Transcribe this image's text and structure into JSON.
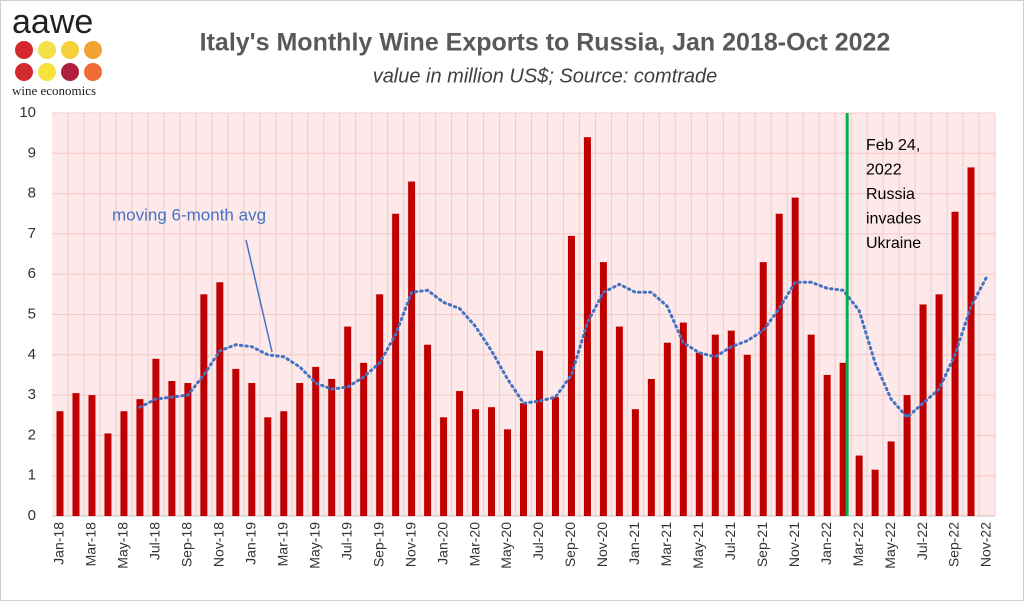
{
  "chart_data": {
    "type": "bar",
    "logo": {
      "name": "aawe",
      "tagline": "wine economics"
    },
    "title": "Italy's Monthly Wine Exports to Russia, Jan 2018-Oct 2022",
    "subtitle": "value in million US$; Source: comtrade",
    "categories": [
      "Jan-18",
      null,
      "Mar-18",
      null,
      "May-18",
      null,
      "Jul-18",
      null,
      "Sep-18",
      null,
      "Nov-18",
      null,
      "Jan-19",
      null,
      "Mar-19",
      null,
      "May-19",
      null,
      "Jul-19",
      null,
      "Sep-19",
      null,
      "Nov-19",
      null,
      "Jan-20",
      null,
      "Mar-20",
      null,
      "May-20",
      null,
      "Jul-20",
      null,
      "Sep-20",
      null,
      "Nov-20",
      null,
      "Jan-21",
      null,
      "Mar-21",
      null,
      "May-21",
      null,
      "Jul-21",
      null,
      "Sep-21",
      null,
      "Nov-21",
      null,
      "Jan-22",
      null,
      "Mar-22",
      null,
      "May-22",
      null,
      "Jul-22",
      null,
      "Sep-22",
      null,
      "Nov-22"
    ],
    "series": [
      {
        "type": "bar",
        "color": "#c00000",
        "values": [
          2.6,
          3.05,
          3.0,
          2.05,
          2.6,
          2.9,
          3.9,
          3.35,
          3.3,
          5.5,
          5.8,
          3.65,
          3.3,
          2.45,
          2.6,
          3.3,
          3.7,
          3.4,
          4.7,
          3.8,
          5.5,
          7.5,
          8.3,
          4.25,
          2.45,
          3.1,
          2.65,
          2.7,
          2.15,
          2.8,
          4.1,
          2.95,
          6.95,
          9.4,
          6.3,
          4.7,
          2.65,
          3.4,
          4.3,
          4.8,
          4.05,
          4.5,
          4.6,
          4.0,
          6.3,
          7.5,
          7.9,
          4.5,
          3.5,
          3.8,
          1.5,
          1.15,
          1.85,
          3.0,
          5.25,
          5.5,
          7.55,
          8.65,
          null
        ]
      },
      {
        "type": "line",
        "name": "moving 6-month avg",
        "color": "#4472c4",
        "values": [
          null,
          null,
          null,
          null,
          null,
          2.7,
          2.9,
          2.95,
          3.0,
          3.5,
          4.1,
          4.25,
          4.2,
          4.0,
          3.95,
          3.7,
          3.3,
          3.15,
          3.2,
          3.45,
          3.8,
          4.5,
          5.55,
          5.6,
          5.3,
          5.15,
          4.7,
          4.1,
          3.4,
          2.8,
          2.85,
          2.95,
          3.5,
          4.8,
          5.55,
          5.75,
          5.55,
          5.55,
          5.2,
          4.3,
          4.05,
          3.95,
          4.2,
          4.35,
          4.6,
          5.15,
          5.8,
          5.8,
          5.65,
          5.6,
          5.1,
          3.8,
          2.9,
          2.45,
          2.8,
          3.15,
          4.0,
          5.2,
          5.95
        ]
      }
    ],
    "event": {
      "color": "#00b050",
      "after": "Feb-22",
      "label": [
        "Feb 24,",
        "2022",
        "Russia",
        "invades",
        "Ukraine"
      ]
    },
    "ylim": [
      0,
      10
    ],
    "yticks": [
      0,
      1,
      2,
      3,
      4,
      5,
      6,
      7,
      8,
      9,
      10
    ],
    "grid": true,
    "background": "#fde9e9"
  }
}
